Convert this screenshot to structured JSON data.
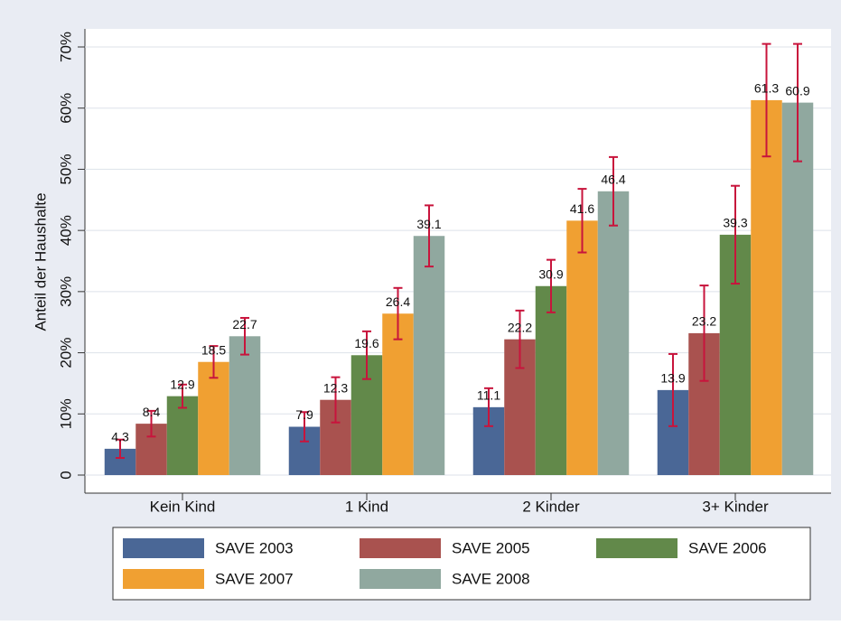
{
  "chart_data": {
    "type": "bar",
    "y_label": "Anteil der Haushalte",
    "categories": [
      "Kein Kind",
      "1 Kind",
      "2 Kinder",
      "3+ Kinder"
    ],
    "series": [
      {
        "name": "SAVE 2003",
        "color": "#4a6796",
        "values": [
          4.3,
          7.9,
          11.1,
          13.9
        ],
        "errors": [
          1.5,
          2.4,
          3.1,
          5.9
        ]
      },
      {
        "name": "SAVE 2005",
        "color": "#a9524f",
        "values": [
          8.4,
          12.3,
          22.2,
          23.2
        ],
        "errors": [
          2.1,
          3.7,
          4.7,
          7.8
        ]
      },
      {
        "name": "SAVE 2006",
        "color": "#62894a",
        "values": [
          12.9,
          19.6,
          30.9,
          39.3
        ],
        "errors": [
          1.9,
          3.9,
          4.3,
          8.0
        ]
      },
      {
        "name": "SAVE 2007",
        "color": "#f0a032",
        "values": [
          18.5,
          26.4,
          41.6,
          61.3
        ],
        "errors": [
          2.6,
          4.2,
          5.2,
          9.2
        ]
      },
      {
        "name": "SAVE 2008",
        "color": "#90a89f",
        "values": [
          22.7,
          39.1,
          46.4,
          60.9
        ],
        "errors": [
          3.0,
          5.0,
          5.6,
          9.6
        ]
      }
    ],
    "error_color": "#c8143c",
    "ylim": [
      0,
      70
    ],
    "yticks": [
      0,
      {
        "value": 10,
        "label": "10%"
      },
      {
        "value": 20,
        "label": "20%"
      },
      {
        "value": 30,
        "label": "30%"
      },
      {
        "value": 40,
        "label": "40%"
      },
      {
        "value": 50,
        "label": "50%"
      },
      {
        "value": 60,
        "label": "60%"
      },
      {
        "value": 70,
        "label": "70%"
      }
    ],
    "grid": true
  }
}
